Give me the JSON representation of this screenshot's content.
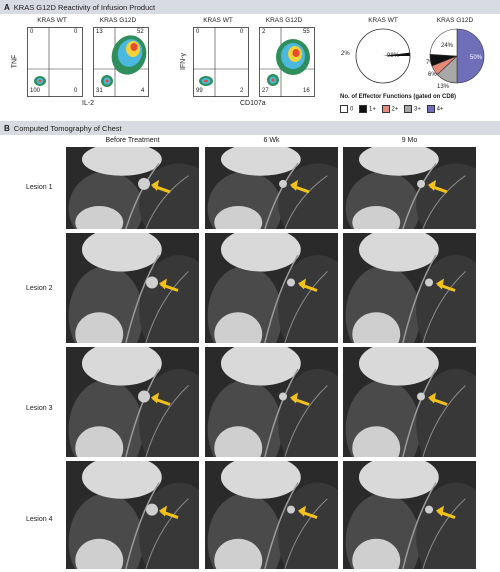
{
  "panel_a": {
    "letter": "A",
    "title": "KRAS G12D Reactivity of Infusion Product",
    "flow_plots": [
      {
        "title": "KRAS WT",
        "q_tl": "0",
        "q_tr": "0",
        "q_bl": "100",
        "q_br": "0"
      },
      {
        "title": "KRAS G12D",
        "q_tl": "13",
        "q_tr": "52",
        "q_bl": "31",
        "q_br": "4"
      },
      {
        "title": "KRAS WT",
        "q_tl": "0",
        "q_tr": "0",
        "q_bl": "99",
        "q_br": "2"
      },
      {
        "title": "KRAS G12D",
        "q_tl": "2",
        "q_tr": "55",
        "q_bl": "27",
        "q_br": "16"
      }
    ],
    "axis_tnf": "TNF",
    "axis_il2": "IL-2",
    "axis_ifng": "IFN-γ",
    "axis_cd107a": "CD107a",
    "pie_wt_title": "KRAS WT",
    "pie_g12d_title": "KRAS G12D",
    "pie_wt_labels": {
      "small": "2%",
      "big": "98%"
    },
    "pie_g12d_labels": {
      "zero": "24%",
      "one": "7%",
      "two": "6%",
      "three": "13%",
      "four": "50%"
    },
    "legend_title": "No. of Effector Functions (gated on CD8)",
    "legend_items": [
      "0",
      "1+",
      "2+",
      "3+",
      "4+"
    ],
    "legend_colors": [
      "#ffffff",
      "#111111",
      "#e58a7a",
      "#a8a8a8",
      "#6e6fb8"
    ]
  },
  "chart_data": [
    {
      "type": "pie",
      "title": "KRAS WT",
      "categories": [
        "0",
        "1+"
      ],
      "values": [
        98,
        2
      ]
    },
    {
      "type": "pie",
      "title": "KRAS G12D",
      "categories": [
        "0",
        "1+",
        "2+",
        "3+",
        "4+"
      ],
      "values": [
        24,
        7,
        6,
        13,
        50
      ]
    }
  ],
  "panel_b": {
    "letter": "B",
    "title": "Computed Tomography of Chest",
    "columns": [
      "Before Treatment",
      "6 Wk",
      "9 Mo"
    ],
    "rows": [
      "Lesion 1",
      "Lesion 2",
      "Lesion 3",
      "Lesion 4"
    ]
  }
}
